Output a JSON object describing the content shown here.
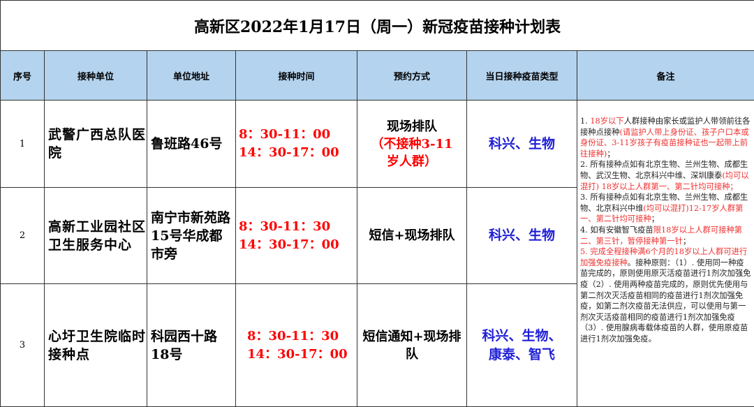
{
  "title": "高新区2022年1月17日（周一）新冠疫苗接种计划表",
  "headers": [
    "序号",
    "接种单位",
    "单位地址",
    "接种时间",
    "预约方式",
    "当日接种疫苗类型",
    "备注"
  ],
  "rows": [
    {
      "seq": "1",
      "unit": "武警广西总队医院",
      "address": "鲁班路46号",
      "time1": "8：30-11：00",
      "time2": "14：30-17：00",
      "method": "现场排队",
      "method_note": "（不接种3-11岁人群）",
      "vaccine": "科兴、生物"
    },
    {
      "seq": "2",
      "unit": "高新工业园社区卫生服务中心",
      "address": "南宁市新苑路15号华成都市旁",
      "time1": "8：30-11：30",
      "time2": "14：30-17：00",
      "method": "短信+现场排队",
      "method_note": "",
      "vaccine": "科兴、生物"
    },
    {
      "seq": "3",
      "unit": "心圩卫生院临时接种点",
      "address": "科园西十路18号",
      "time1": "8：30-11：30",
      "time2": "14：30-17：00",
      "method": "短信通知+现场排队",
      "method_note": "",
      "vaccine": "科兴、生物、康泰、智飞"
    }
  ],
  "notes": [
    {
      "t": "1. ",
      "red": false
    },
    {
      "t": "18岁以下",
      "red": true
    },
    {
      "t": "人群接种由家长或监护人带领前往各接种点接种",
      "red": false
    },
    {
      "t": "(请监护人带上身份证、孩子户口本或身份证、3-11岁孩子有疫苗接种证也一起带上前往接种)",
      "red": true
    },
    {
      "t": "；",
      "red": false
    },
    {
      "t": "2. 所有接种点如有北京生物、兰州生物、成都生物、武汉生物、北京科兴中维、深圳康泰",
      "red": false
    },
    {
      "t": "(均可以混打) 18岁以上人群第一、第二针均可接种；",
      "red": true
    },
    {
      "t": "3. 所有接种点如有北京生物、兰州生物、成都生物、北京科兴中维",
      "red": false
    },
    {
      "t": "(均可以混打)12-17岁人群第一、第二针均可接种",
      "red": true
    },
    {
      "t": "；",
      "red": false
    },
    {
      "t": "4. 如有安徽智飞疫苗",
      "red": false
    },
    {
      "t": "限18岁以上人群可接种第二、第三针，暂停接种第一针",
      "red": true
    },
    {
      "t": "；",
      "red": false
    },
    {
      "t": "5. 完成全程接种满6个月的18岁以上人群可进行加强免疫接种",
      "red": true
    },
    {
      "t": "。接种原则：（1）. 使用同一种疫苗完成的，原则使用原灭活疫苗进行1剂次加强免疫（2）. 使用两种疫苗完成的，原则优先使用与第二剂次灭活疫苗相同的疫苗进行1剂次加强免疫，如第二剂次疫苗无法供应，可以使用与第一剂次灭活疫苗相同的疫苗进行1剂次加强免疫（3）. 使用腺病毒载体疫苗的人群，使用原疫苗进行1剂次加强免疫。",
      "red": false
    }
  ]
}
